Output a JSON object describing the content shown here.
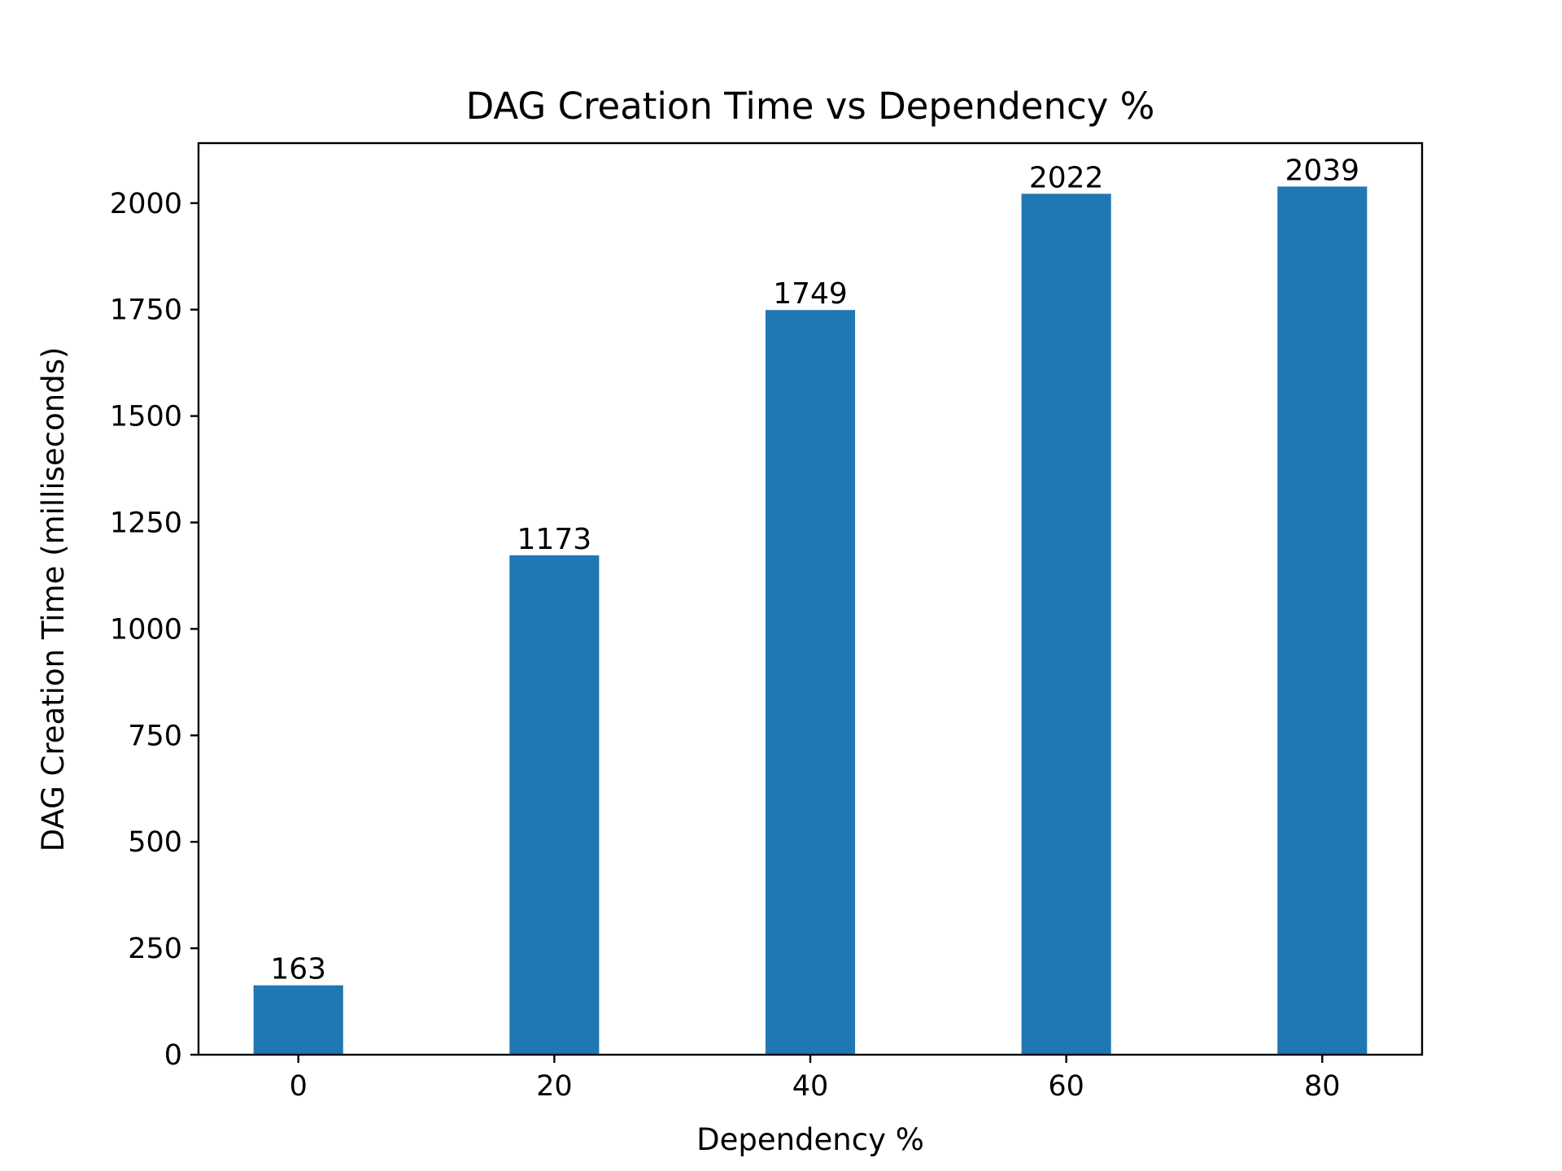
{
  "chart_data": {
    "type": "bar",
    "title": "DAG Creation Time vs Dependency %",
    "xlabel": "Dependency %",
    "ylabel": "DAG Creation Time (milliseconds)",
    "x": [
      0,
      20,
      40,
      60,
      80
    ],
    "values": [
      163,
      1173,
      1749,
      2022,
      2039
    ],
    "data_labels": [
      "163",
      "1173",
      "1749",
      "2022",
      "2039"
    ],
    "bar_width": 7,
    "xlim": [
      -7.8,
      87.8
    ],
    "ylim": [
      0,
      2141
    ],
    "xticks": [
      0,
      20,
      40,
      60,
      80
    ],
    "xtick_labels": [
      "0",
      "20",
      "40",
      "60",
      "80"
    ],
    "yticks": [
      0,
      250,
      500,
      750,
      1000,
      1250,
      1500,
      1750,
      2000
    ],
    "ytick_labels": [
      "0",
      "250",
      "500",
      "750",
      "1000",
      "1250",
      "1500",
      "1750",
      "2000"
    ],
    "bar_color": "#1f77b4",
    "grid": false,
    "legend": "none"
  }
}
